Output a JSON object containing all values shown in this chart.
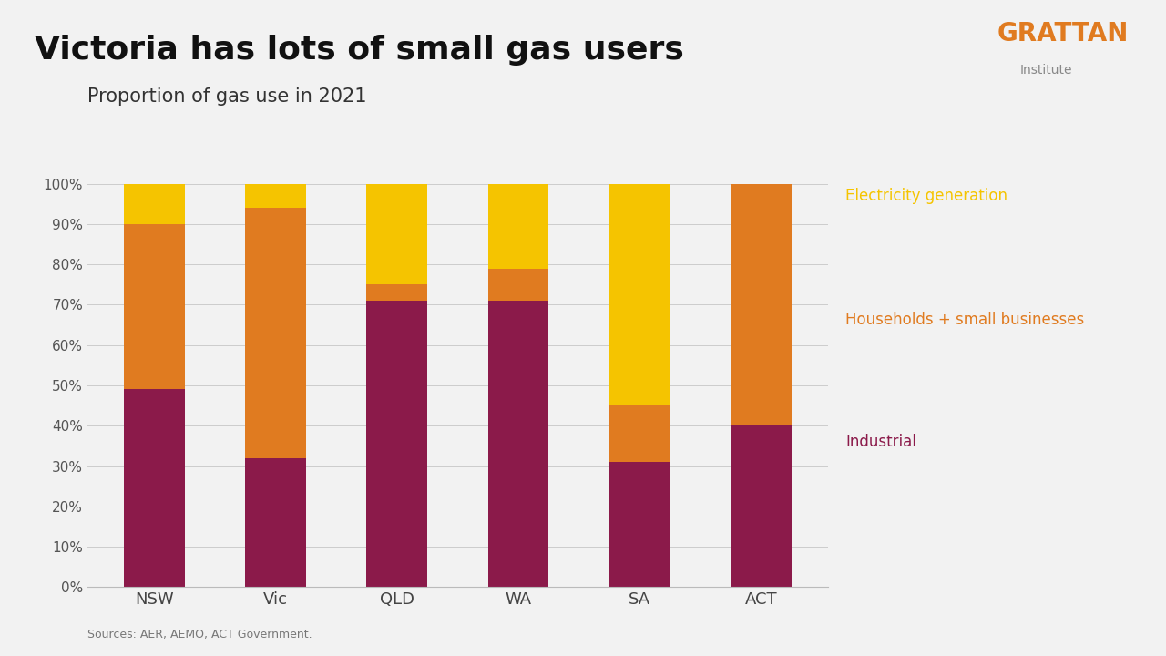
{
  "title": "Victoria has lots of small gas users",
  "subtitle": "Proportion of gas use in 2021",
  "source": "Sources: AER, AEMO, ACT Government.",
  "categories": [
    "NSW",
    "Vic",
    "QLD",
    "WA",
    "SA",
    "ACT"
  ],
  "industrial": [
    49,
    32,
    71,
    71,
    31,
    40
  ],
  "households": [
    41,
    62,
    4,
    8,
    14,
    60
  ],
  "electricity": [
    10,
    6,
    25,
    21,
    55,
    0
  ],
  "color_industrial": "#8B1A4A",
  "color_households": "#E07B20",
  "color_electricity": "#F5C400",
  "background_header": "#E0E0E0",
  "background_body": "#F2F2F2",
  "legend_electricity": "Electricity generation",
  "legend_households": "Households + small businesses",
  "legend_industrial": "Industrial",
  "title_fontsize": 26,
  "subtitle_fontsize": 15,
  "source_fontsize": 9,
  "bar_width": 0.5,
  "ylim": [
    0,
    100
  ],
  "ytick_labels": [
    "0%",
    "10%",
    "20%",
    "30%",
    "40%",
    "50%",
    "60%",
    "70%",
    "80%",
    "90%",
    "100%"
  ],
  "grattan_color": "#E07B20",
  "institute_color": "#888888"
}
